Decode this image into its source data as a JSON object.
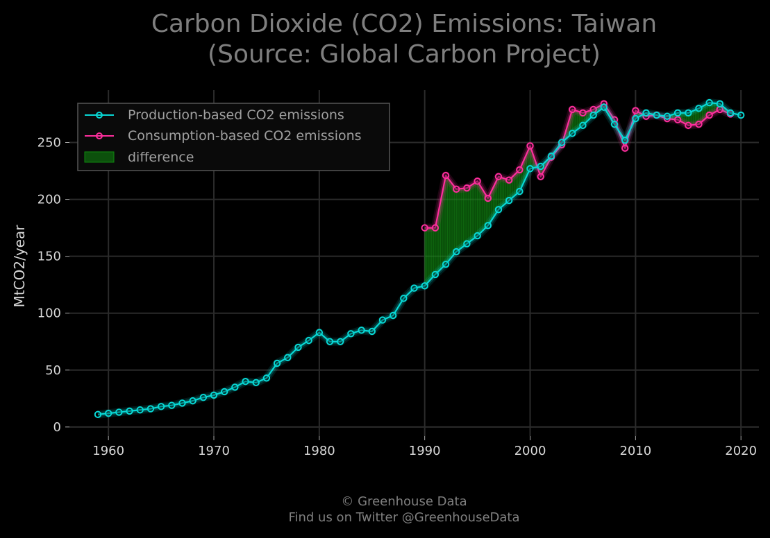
{
  "chart_data": {
    "type": "line",
    "title": "Carbon Dioxide (CO2) Emissions: Taiwan",
    "subtitle": "(Source: Global Carbon Project)",
    "xlabel": "",
    "ylabel": "MtCO2/year",
    "xlim": [
      1956.3,
      2021.7
    ],
    "ylim": [
      -8,
      296
    ],
    "xticks": [
      1960,
      1970,
      1980,
      1990,
      2000,
      2010,
      2020
    ],
    "yticks": [
      0,
      50,
      100,
      150,
      200,
      250
    ],
    "grid": true,
    "legend_position": "top-left",
    "series": [
      {
        "name": "Production-based CO2 emissions",
        "color": "#08d9d6",
        "x": [
          1959,
          1960,
          1961,
          1962,
          1963,
          1964,
          1965,
          1966,
          1967,
          1968,
          1969,
          1970,
          1971,
          1972,
          1973,
          1974,
          1975,
          1976,
          1977,
          1978,
          1979,
          1980,
          1981,
          1982,
          1983,
          1984,
          1985,
          1986,
          1987,
          1988,
          1989,
          1990,
          1991,
          1992,
          1993,
          1994,
          1995,
          1996,
          1997,
          1998,
          1999,
          2000,
          2001,
          2002,
          2003,
          2004,
          2005,
          2006,
          2007,
          2008,
          2009,
          2010,
          2011,
          2012,
          2013,
          2014,
          2015,
          2016,
          2017,
          2018,
          2019,
          2020
        ],
        "values": [
          11,
          12,
          13,
          14,
          15,
          16,
          18,
          19,
          21,
          23,
          26,
          28,
          31,
          35,
          40,
          39,
          43,
          56,
          61,
          70,
          76,
          83,
          75,
          75,
          82,
          85,
          84,
          94,
          98,
          113,
          122,
          124,
          134,
          143,
          154,
          161,
          168,
          177,
          191,
          199,
          207,
          227,
          229,
          238,
          250,
          258,
          265,
          274,
          281,
          266,
          252,
          271,
          276,
          274,
          273,
          276,
          276,
          280,
          285,
          284,
          276,
          274
        ]
      },
      {
        "name": "Consumption-based CO2 emissions",
        "color": "#ff2e9e",
        "x": [
          1990,
          1991,
          1992,
          1993,
          1994,
          1995,
          1996,
          1997,
          1998,
          1999,
          2000,
          2001,
          2002,
          2003,
          2004,
          2005,
          2006,
          2007,
          2008,
          2009,
          2010,
          2011,
          2012,
          2013,
          2014,
          2015,
          2016,
          2017,
          2018,
          2019
        ],
        "values": [
          175,
          175,
          221,
          209,
          210,
          216,
          201,
          220,
          217,
          226,
          247,
          220,
          237,
          248,
          279,
          276,
          279,
          284,
          270,
          245,
          278,
          273,
          274,
          271,
          270,
          265,
          266,
          274,
          279,
          275
        ]
      }
    ],
    "fill_between": {
      "name": "difference",
      "color": "#0f8a0f"
    }
  },
  "footer": {
    "line1": "© Greenhouse Data",
    "line2": "Find us on Twitter @GreenhouseData"
  },
  "colors": {
    "background": "#000000",
    "title": "#7f7f7f",
    "axis_text": "#d8d8d8",
    "grid": "#2b2b2b",
    "legend_text": "#a0a0a0",
    "legend_border": "#555555"
  }
}
